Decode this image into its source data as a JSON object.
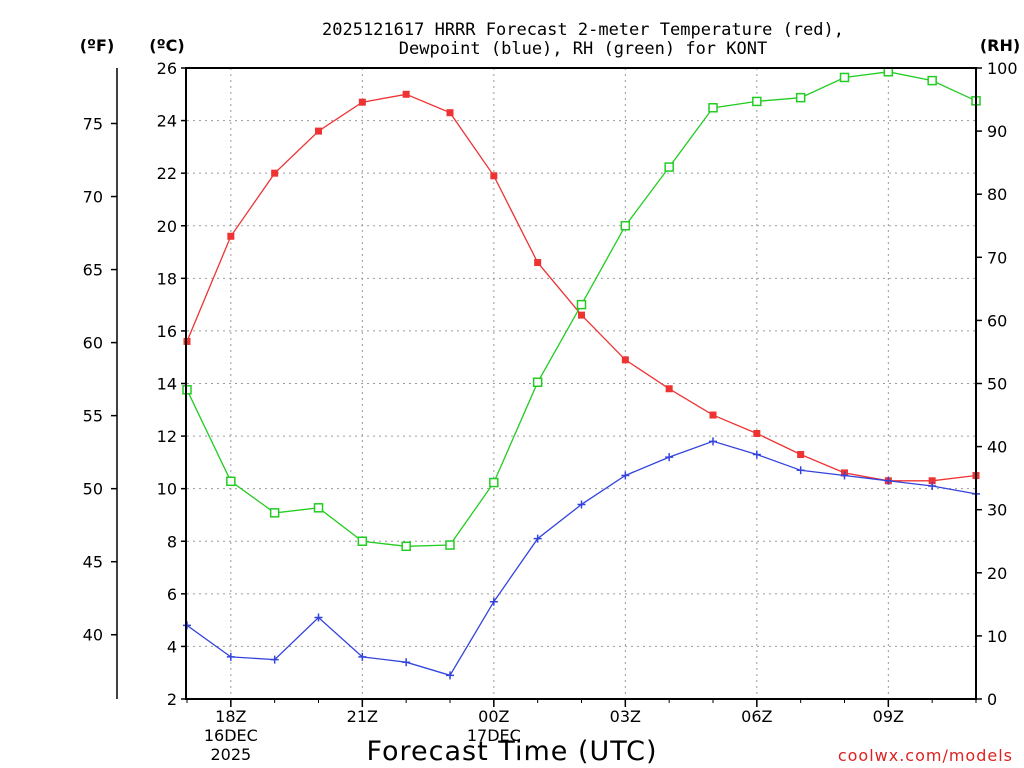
{
  "chart_data": {
    "type": "line",
    "title_line1": "2025121617 HRRR Forecast 2-meter Temperature (red),",
    "title_line2": "Dewpoint (blue), RH (green) for KONT",
    "xlabel": "Forecast Time (UTC)",
    "watermark": "coolwx.com/models",
    "axis_units": {
      "fahrenheit": "(ºF)",
      "celsius": "(ºC)",
      "rh": "(RH)"
    },
    "x": [
      0,
      1,
      2,
      3,
      4,
      5,
      6,
      7,
      8,
      9,
      10,
      11,
      12,
      13,
      14,
      15,
      16,
      17,
      18
    ],
    "xlim": [
      0,
      18
    ],
    "x_ticks": [
      {
        "x": 1,
        "lines": [
          "18Z",
          "16DEC",
          "2025"
        ]
      },
      {
        "x": 4,
        "lines": [
          "21Z"
        ]
      },
      {
        "x": 7,
        "lines": [
          "00Z",
          "17DEC"
        ]
      },
      {
        "x": 10,
        "lines": [
          "03Z"
        ]
      },
      {
        "x": 13,
        "lines": [
          "06Z"
        ]
      },
      {
        "x": 16,
        "lines": [
          "09Z"
        ]
      }
    ],
    "celsius_axis": {
      "ylim": [
        2,
        26
      ],
      "ticks": [
        "2",
        "4",
        "6",
        "8",
        "10",
        "12",
        "14",
        "16",
        "18",
        "20",
        "22",
        "24",
        "26"
      ]
    },
    "fahrenheit_axis": {
      "ticks": [
        "40",
        "45",
        "50",
        "55",
        "60",
        "65",
        "70",
        "75"
      ]
    },
    "rh_axis": {
      "ylim": [
        0,
        100
      ],
      "ticks": [
        "0",
        "10",
        "20",
        "30",
        "40",
        "50",
        "60",
        "70",
        "80",
        "90",
        "100"
      ]
    },
    "series": [
      {
        "name": "Temperature",
        "axis": "celsius",
        "color": "#ee3333",
        "marker": "filled-square",
        "values": [
          15.6,
          19.6,
          22.0,
          23.6,
          24.7,
          25.0,
          24.3,
          21.9,
          18.6,
          16.6,
          14.9,
          13.8,
          12.8,
          12.1,
          11.3,
          10.6,
          10.3,
          10.3,
          10.5
        ]
      },
      {
        "name": "Dewpoint",
        "axis": "celsius",
        "color": "#3344dd",
        "marker": "plus",
        "values": [
          4.8,
          3.6,
          3.5,
          5.1,
          3.6,
          3.4,
          2.9,
          5.7,
          8.1,
          9.4,
          10.5,
          11.2,
          11.8,
          11.3,
          10.7,
          10.5,
          10.3,
          10.1,
          9.8
        ]
      },
      {
        "name": "RH",
        "axis": "rh",
        "color": "#22cc22",
        "marker": "open-square",
        "values": [
          49,
          34.5,
          29.5,
          30.3,
          25,
          24.2,
          24.4,
          34.3,
          50.2,
          62.5,
          75,
          84.3,
          93.7,
          94.7,
          95.3,
          98.5,
          99.4,
          98,
          94.8
        ]
      }
    ]
  }
}
